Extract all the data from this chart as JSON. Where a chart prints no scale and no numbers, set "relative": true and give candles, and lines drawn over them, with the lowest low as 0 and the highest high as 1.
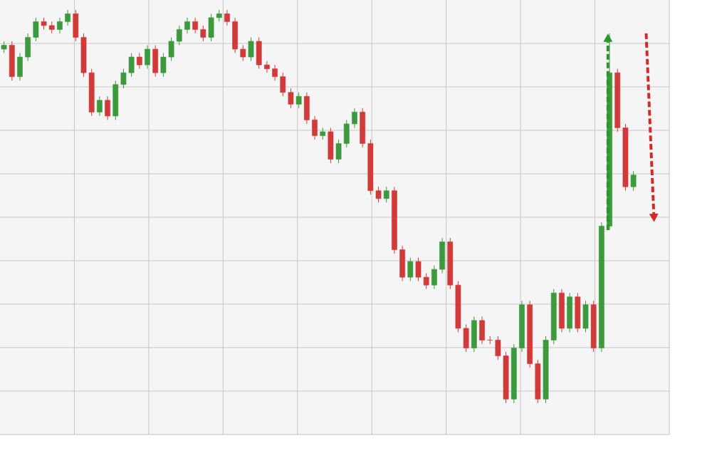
{
  "chart_data": {
    "type": "candlestick",
    "relative": true,
    "grid": true,
    "tick_labels": false,
    "categories": [
      null,
      null,
      null,
      null,
      null,
      null,
      null,
      null,
      null,
      null,
      null,
      null,
      null,
      null,
      null,
      null,
      null,
      null,
      null,
      null,
      null,
      null,
      null,
      null,
      null,
      null,
      null,
      null,
      null,
      null,
      null,
      null,
      null,
      null,
      null,
      null,
      null,
      null,
      null,
      null,
      null,
      null,
      null,
      null,
      null,
      null,
      null,
      null,
      null,
      null,
      null,
      null,
      null,
      null,
      null,
      null,
      null,
      null,
      null,
      null,
      null,
      null,
      null,
      null,
      null,
      null,
      null,
      null,
      null,
      null,
      null,
      null,
      null,
      null,
      null,
      null,
      null,
      null,
      null,
      null
    ],
    "ohlc": [
      [
        0.9,
        0.92,
        0.89,
        0.91
      ],
      [
        0.91,
        0.92,
        0.82,
        0.83
      ],
      [
        0.83,
        0.89,
        0.82,
        0.88
      ],
      [
        0.88,
        0.94,
        0.87,
        0.93
      ],
      [
        0.93,
        0.98,
        0.92,
        0.97
      ],
      [
        0.97,
        0.98,
        0.95,
        0.96
      ],
      [
        0.96,
        0.97,
        0.94,
        0.95
      ],
      [
        0.95,
        0.98,
        0.94,
        0.97
      ],
      [
        0.97,
        1.0,
        0.96,
        0.99
      ],
      [
        0.99,
        1.0,
        0.92,
        0.93
      ],
      [
        0.93,
        0.94,
        0.83,
        0.84
      ],
      [
        0.84,
        0.85,
        0.73,
        0.74
      ],
      [
        0.74,
        0.78,
        0.73,
        0.77
      ],
      [
        0.77,
        0.78,
        0.72,
        0.73
      ],
      [
        0.73,
        0.82,
        0.72,
        0.81
      ],
      [
        0.81,
        0.85,
        0.8,
        0.84
      ],
      [
        0.84,
        0.89,
        0.83,
        0.88
      ],
      [
        0.88,
        0.89,
        0.85,
        0.86
      ],
      [
        0.86,
        0.91,
        0.85,
        0.9
      ],
      [
        0.9,
        0.91,
        0.83,
        0.84
      ],
      [
        0.84,
        0.89,
        0.83,
        0.88
      ],
      [
        0.88,
        0.93,
        0.87,
        0.92
      ],
      [
        0.92,
        0.96,
        0.91,
        0.95
      ],
      [
        0.95,
        0.98,
        0.94,
        0.97
      ],
      [
        0.97,
        0.98,
        0.94,
        0.95
      ],
      [
        0.95,
        0.96,
        0.92,
        0.93
      ],
      [
        0.93,
        0.99,
        0.92,
        0.98
      ],
      [
        0.98,
        1.0,
        0.97,
        0.99
      ],
      [
        0.99,
        1.0,
        0.96,
        0.97
      ],
      [
        0.97,
        0.98,
        0.89,
        0.9
      ],
      [
        0.9,
        0.91,
        0.87,
        0.88
      ],
      [
        0.88,
        0.93,
        0.87,
        0.92
      ],
      [
        0.92,
        0.93,
        0.85,
        0.86
      ],
      [
        0.86,
        0.87,
        0.84,
        0.85
      ],
      [
        0.85,
        0.86,
        0.82,
        0.83
      ],
      [
        0.83,
        0.84,
        0.78,
        0.79
      ],
      [
        0.79,
        0.8,
        0.75,
        0.76
      ],
      [
        0.76,
        0.79,
        0.75,
        0.78
      ],
      [
        0.78,
        0.79,
        0.71,
        0.72
      ],
      [
        0.72,
        0.73,
        0.67,
        0.68
      ],
      [
        0.68,
        0.7,
        0.67,
        0.69
      ],
      [
        0.69,
        0.7,
        0.61,
        0.62
      ],
      [
        0.62,
        0.67,
        0.61,
        0.66
      ],
      [
        0.66,
        0.72,
        0.65,
        0.71
      ],
      [
        0.71,
        0.75,
        0.7,
        0.74
      ],
      [
        0.74,
        0.75,
        0.65,
        0.66
      ],
      [
        0.66,
        0.67,
        0.53,
        0.54
      ],
      [
        0.54,
        0.55,
        0.51,
        0.52
      ],
      [
        0.52,
        0.55,
        0.51,
        0.54
      ],
      [
        0.54,
        0.55,
        0.38,
        0.39
      ],
      [
        0.39,
        0.4,
        0.31,
        0.32
      ],
      [
        0.32,
        0.37,
        0.31,
        0.36
      ],
      [
        0.36,
        0.37,
        0.31,
        0.32
      ],
      [
        0.32,
        0.33,
        0.29,
        0.3
      ],
      [
        0.3,
        0.35,
        0.29,
        0.34
      ],
      [
        0.34,
        0.42,
        0.33,
        0.41
      ],
      [
        0.41,
        0.42,
        0.29,
        0.3
      ],
      [
        0.3,
        0.31,
        0.18,
        0.19
      ],
      [
        0.19,
        0.2,
        0.13,
        0.14
      ],
      [
        0.14,
        0.22,
        0.13,
        0.21
      ],
      [
        0.21,
        0.22,
        0.15,
        0.16
      ],
      [
        0.16,
        0.17,
        0.15,
        0.16
      ],
      [
        0.16,
        0.17,
        0.11,
        0.12
      ],
      [
        0.12,
        0.13,
        0.0,
        0.01
      ],
      [
        0.01,
        0.15,
        0.0,
        0.14
      ],
      [
        0.14,
        0.26,
        0.13,
        0.25
      ],
      [
        0.25,
        0.26,
        0.09,
        0.1
      ],
      [
        0.1,
        0.11,
        0.0,
        0.01
      ],
      [
        0.01,
        0.17,
        0.0,
        0.16
      ],
      [
        0.16,
        0.29,
        0.15,
        0.28
      ],
      [
        0.28,
        0.29,
        0.18,
        0.19
      ],
      [
        0.19,
        0.28,
        0.18,
        0.27
      ],
      [
        0.27,
        0.28,
        0.18,
        0.19
      ],
      [
        0.19,
        0.26,
        0.18,
        0.25
      ],
      [
        0.25,
        0.26,
        0.13,
        0.14
      ],
      [
        0.14,
        0.46,
        0.13,
        0.45
      ],
      [
        0.45,
        0.94,
        0.44,
        0.84
      ],
      [
        0.84,
        0.85,
        0.69,
        0.7
      ],
      [
        0.7,
        0.71,
        0.54,
        0.55
      ],
      [
        0.55,
        0.59,
        0.54,
        0.58
      ]
    ],
    "colors": [
      "#3c9a3c",
      "#d23a3a",
      "#3c9a3c",
      "#3c9a3c",
      "#3c9a3c",
      "#d23a3a",
      "#d23a3a",
      "#3c9a3c",
      "#3c9a3c",
      "#d23a3a",
      "#d23a3a",
      "#d23a3a",
      "#3c9a3c",
      "#d23a3a",
      "#3c9a3c",
      "#3c9a3c",
      "#3c9a3c",
      "#d23a3a",
      "#3c9a3c",
      "#d23a3a",
      "#3c9a3c",
      "#3c9a3c",
      "#3c9a3c",
      "#3c9a3c",
      "#d23a3a",
      "#d23a3a",
      "#3c9a3c",
      "#3c9a3c",
      "#d23a3a",
      "#d23a3a",
      "#d23a3a",
      "#3c9a3c",
      "#d23a3a",
      "#d23a3a",
      "#d23a3a",
      "#d23a3a",
      "#d23a3a",
      "#3c9a3c",
      "#d23a3a",
      "#d23a3a",
      "#3c9a3c",
      "#d23a3a",
      "#3c9a3c",
      "#3c9a3c",
      "#3c9a3c",
      "#d23a3a",
      "#d23a3a",
      "#d23a3a",
      "#3c9a3c",
      "#d23a3a",
      "#d23a3a",
      "#3c9a3c",
      "#d23a3a",
      "#d23a3a",
      "#3c9a3c",
      "#3c9a3c",
      "#d23a3a",
      "#d23a3a",
      "#d23a3a",
      "#3c9a3c",
      "#d23a3a",
      "#d23a3a",
      "#d23a3a",
      "#d23a3a",
      "#3c9a3c",
      "#3c9a3c",
      "#d23a3a",
      "#d23a3a",
      "#3c9a3c",
      "#3c9a3c",
      "#d23a3a",
      "#3c9a3c",
      "#d23a3a",
      "#3c9a3c",
      "#d23a3a",
      "#3c9a3c",
      "#3c9a3c",
      "#d23a3a",
      "#d23a3a",
      "#3c9a3c"
    ]
  }
}
